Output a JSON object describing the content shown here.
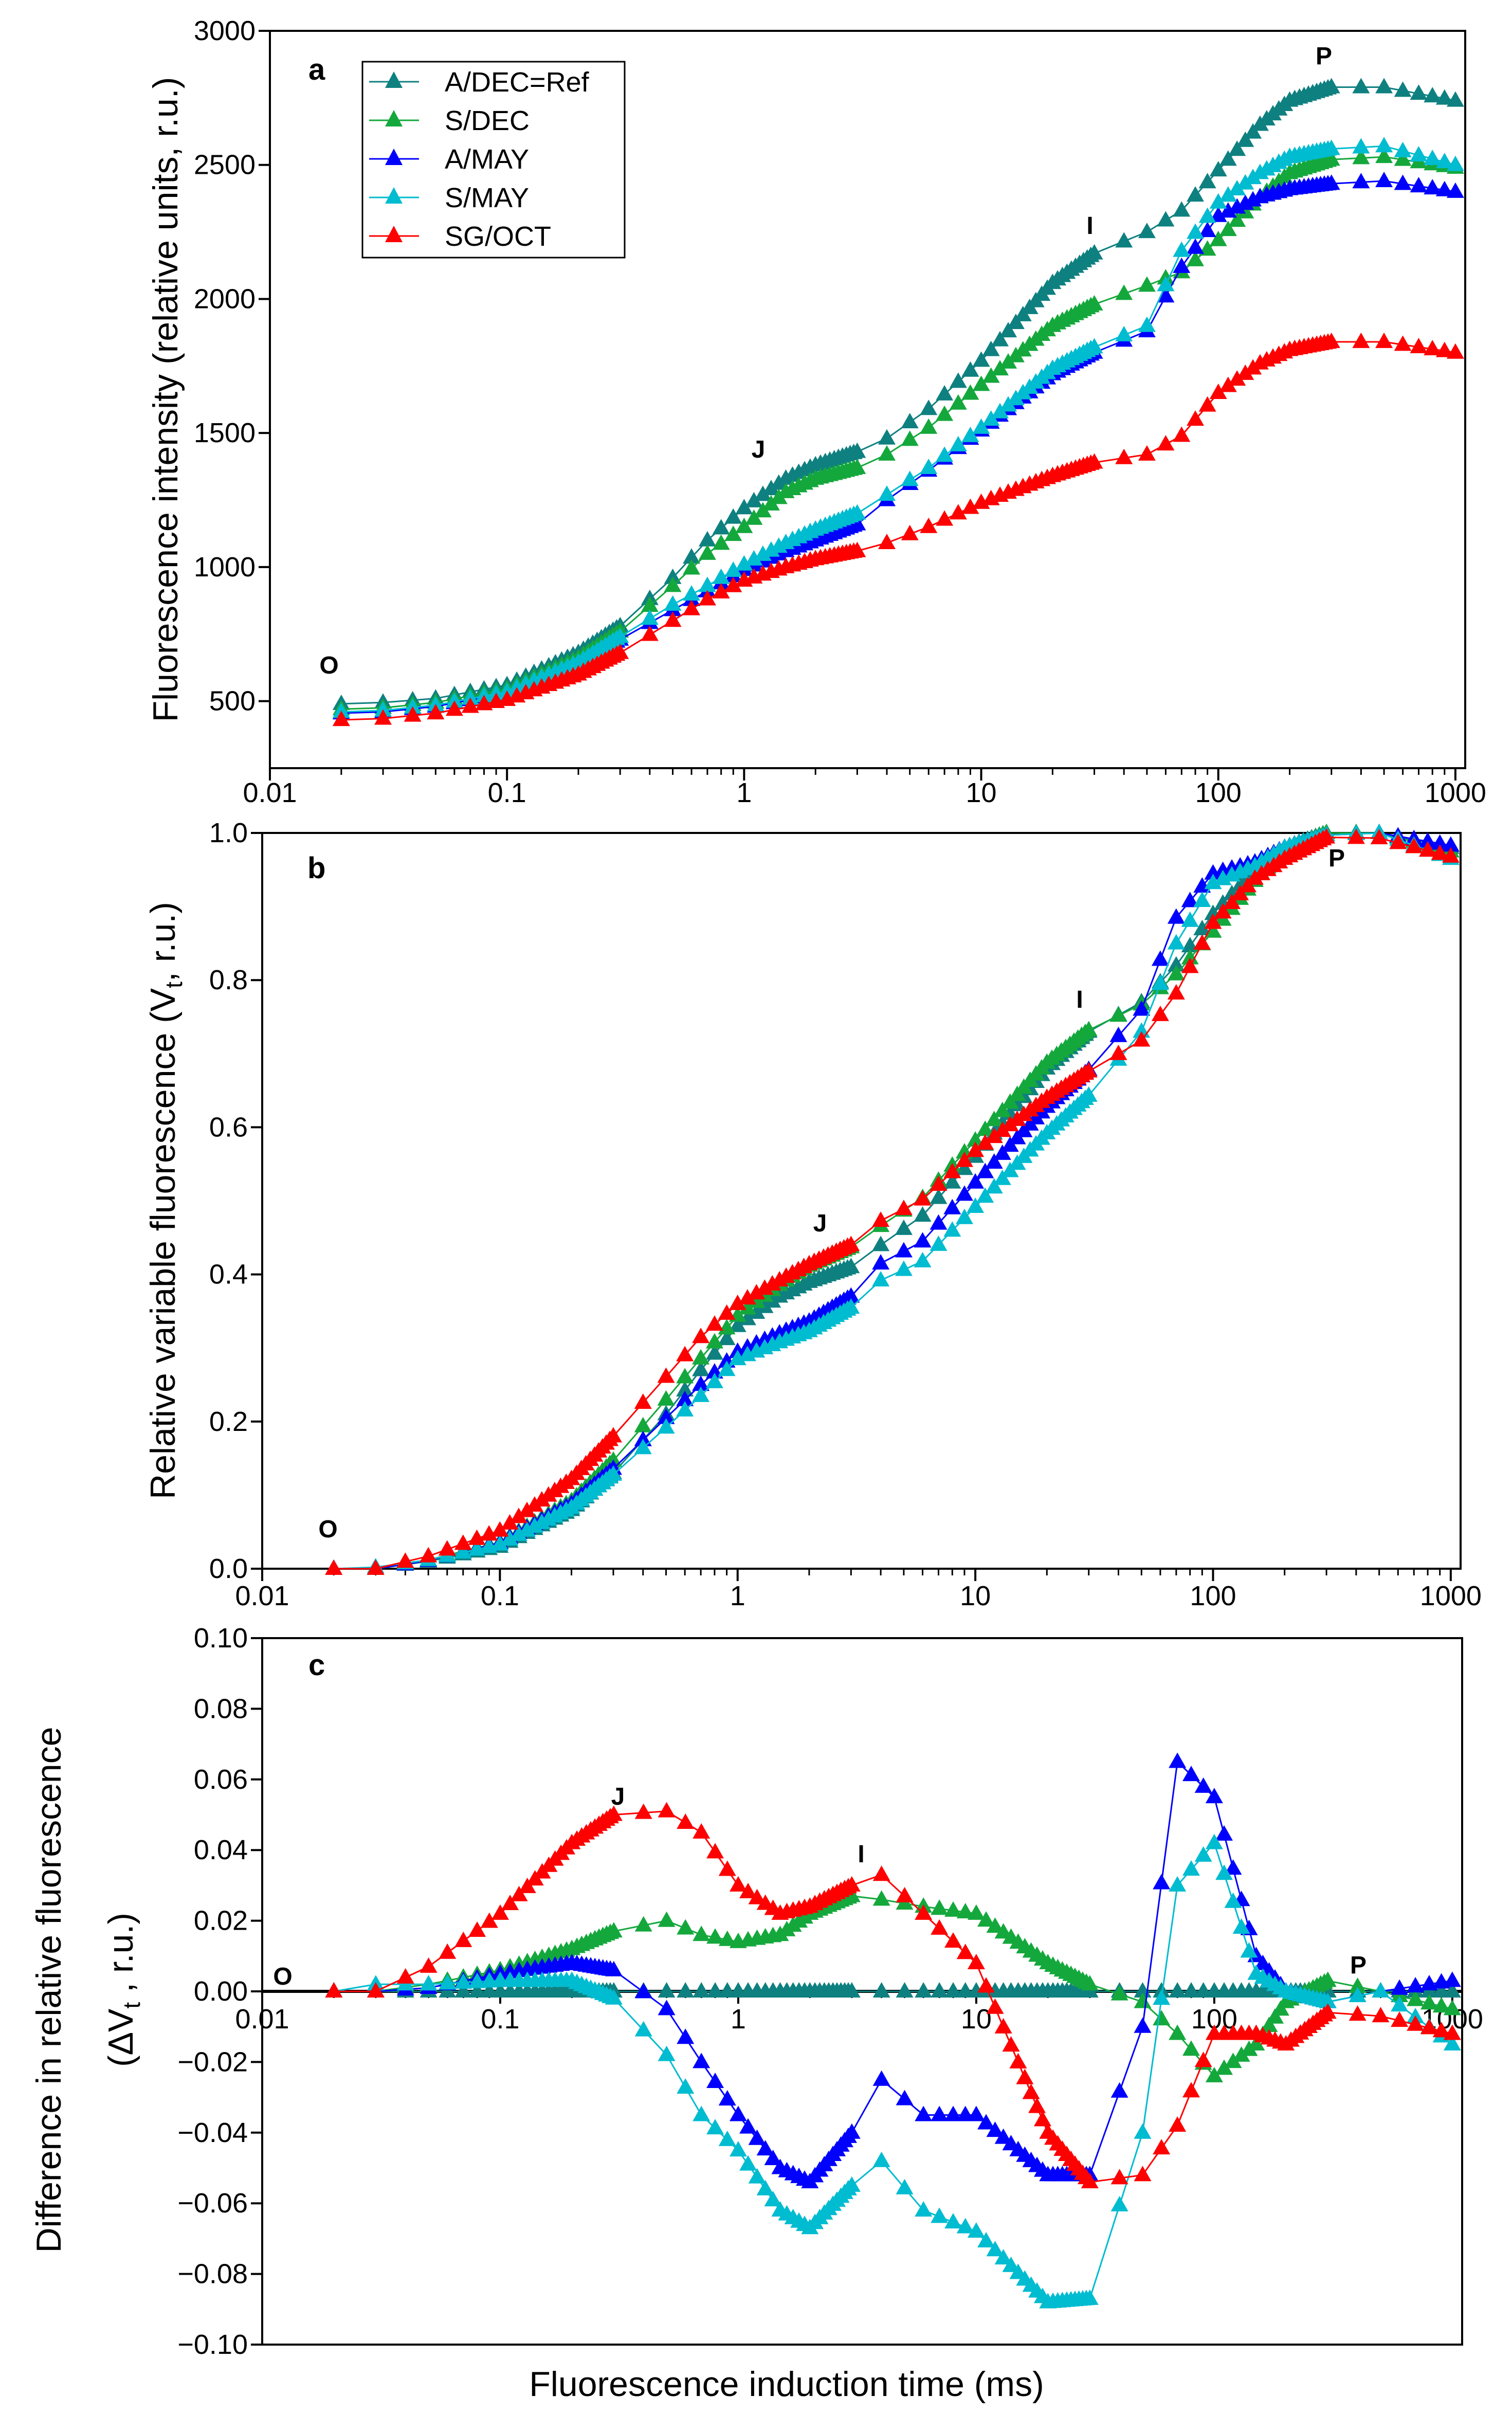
{
  "chart_data": [
    {
      "type": "line",
      "panel": "a",
      "ylabel": "Fluorescence intensity (relative units, r.u.)",
      "xscale": "log",
      "xlim": [
        0.01,
        1100
      ],
      "ylim": [
        250,
        3000
      ],
      "xticks": [
        "0.01",
        "0.1",
        "1",
        "10",
        "100",
        "1000"
      ],
      "yticks": [
        "500",
        "1000",
        "1500",
        "2000",
        "2500",
        "3000"
      ],
      "annotations": [
        "O",
        "J",
        "I",
        "P"
      ],
      "legend_position": "top-left",
      "x": [
        0.02,
        0.03,
        0.05,
        0.1,
        0.2,
        0.3,
        0.5,
        0.7,
        1,
        1.5,
        2,
        3,
        4,
        6,
        10,
        20,
        30,
        50,
        70,
        100,
        150,
        200,
        300,
        500,
        1000
      ],
      "series": [
        {
          "name": "A/DEC=Ref",
          "color": "#0f8080",
          "values": [
            490,
            495,
            510,
            560,
            680,
            780,
            960,
            1100,
            1220,
            1330,
            1380,
            1430,
            1480,
            1590,
            1770,
            2060,
            2170,
            2250,
            2330,
            2480,
            2650,
            2740,
            2790,
            2790,
            2740
          ]
        },
        {
          "name": "S/DEC",
          "color": "#14a83c",
          "values": [
            470,
            475,
            495,
            545,
            660,
            760,
            930,
            1050,
            1150,
            1280,
            1330,
            1370,
            1420,
            1520,
            1680,
            1900,
            1980,
            2050,
            2100,
            2220,
            2380,
            2470,
            2520,
            2530,
            2490
          ]
        },
        {
          "name": "A/MAY",
          "color": "#0000ff",
          "values": [
            455,
            460,
            480,
            530,
            640,
            730,
            840,
            910,
            990,
            1060,
            1100,
            1160,
            1250,
            1360,
            1510,
            1720,
            1800,
            1880,
            2120,
            2310,
            2380,
            2410,
            2430,
            2440,
            2400
          ]
        },
        {
          "name": "S/MAY",
          "color": "#00bcd0",
          "values": [
            460,
            465,
            485,
            535,
            645,
            740,
            860,
            930,
            1010,
            1090,
            1140,
            1200,
            1270,
            1370,
            1520,
            1740,
            1820,
            1900,
            2180,
            2360,
            2470,
            2530,
            2560,
            2570,
            2500
          ]
        },
        {
          "name": "SG/OCT",
          "color": "#ff0000",
          "values": [
            430,
            435,
            455,
            505,
            600,
            680,
            800,
            880,
            950,
            1000,
            1030,
            1060,
            1090,
            1150,
            1240,
            1340,
            1390,
            1420,
            1490,
            1650,
            1760,
            1810,
            1840,
            1840,
            1800
          ]
        }
      ]
    },
    {
      "type": "line",
      "panel": "b",
      "ylabel": [
        "Relative variable fluorescence (V",
        "t",
        ", r.u.)"
      ],
      "xscale": "log",
      "xlim": [
        0.01,
        1100
      ],
      "ylim": [
        0,
        1
      ],
      "xticks": [
        "0.01",
        "0.1",
        "1",
        "10",
        "100",
        "1000"
      ],
      "yticks": [
        "0.0",
        "0.2",
        "0.4",
        "0.6",
        "0.8",
        "1.0"
      ],
      "annotations": [
        "O",
        "J",
        "I",
        "P"
      ],
      "x": [
        0.02,
        0.03,
        0.05,
        0.1,
        0.2,
        0.3,
        0.5,
        0.7,
        1,
        1.5,
        2,
        3,
        4,
        6,
        10,
        20,
        30,
        50,
        70,
        100,
        150,
        200,
        300,
        500,
        1000
      ],
      "series": [
        {
          "name": "A/DEC=Ref",
          "color": "#0f8080",
          "values": [
            0,
            0,
            0.01,
            0.03,
            0.08,
            0.13,
            0.21,
            0.27,
            0.33,
            0.37,
            0.39,
            0.41,
            0.44,
            0.48,
            0.56,
            0.68,
            0.73,
            0.77,
            0.82,
            0.89,
            0.95,
            0.98,
            1.0,
            1.0,
            0.98
          ]
        },
        {
          "name": "S/DEC",
          "color": "#14a83c",
          "values": [
            0,
            0,
            0.012,
            0.036,
            0.092,
            0.147,
            0.23,
            0.286,
            0.344,
            0.386,
            0.412,
            0.437,
            0.466,
            0.504,
            0.582,
            0.688,
            0.732,
            0.767,
            0.808,
            0.866,
            0.935,
            0.977,
            1.0,
            1.0,
            0.975
          ]
        },
        {
          "name": "A/MAY",
          "color": "#0000ff",
          "values": [
            0,
            0,
            0.011,
            0.035,
            0.088,
            0.136,
            0.205,
            0.25,
            0.295,
            0.32,
            0.336,
            0.37,
            0.415,
            0.445,
            0.525,
            0.628,
            0.678,
            0.76,
            0.885,
            0.945,
            0.96,
            0.98,
            0.997,
            1.0,
            0.983
          ]
        },
        {
          "name": "S/MAY",
          "color": "#00bcd0",
          "values": [
            0,
            0.002,
            0.012,
            0.033,
            0.083,
            0.128,
            0.192,
            0.235,
            0.285,
            0.308,
            0.323,
            0.355,
            0.392,
            0.418,
            0.492,
            0.592,
            0.643,
            0.73,
            0.85,
            0.932,
            0.955,
            0.98,
            0.997,
            1.0,
            0.965
          ]
        },
        {
          "name": "SG/OCT",
          "color": "#ff0000",
          "values": [
            0,
            0,
            0.017,
            0.052,
            0.122,
            0.18,
            0.261,
            0.315,
            0.36,
            0.392,
            0.414,
            0.44,
            0.473,
            0.502,
            0.568,
            0.64,
            0.676,
            0.718,
            0.782,
            0.878,
            0.938,
            0.965,
            0.994,
            0.993,
            0.968
          ]
        }
      ]
    },
    {
      "type": "line",
      "panel": "c",
      "ylabel": [
        "Difference in relative fluorescence",
        "(ΔV",
        "t",
        " , r.u.)"
      ],
      "xlabel": "Fluorescence induction time (ms)",
      "xscale": "log",
      "xlim": [
        0.01,
        1100
      ],
      "ylim": [
        -0.1,
        0.1
      ],
      "xticks": [
        "0.01",
        "0.1",
        "1",
        "10",
        "100",
        "1000"
      ],
      "yticks": [
        "−0.10",
        "−0.08",
        "−0.06",
        "−0.04",
        "−0.02",
        "0.00",
        "0.02",
        "0.04",
        "0.06",
        "0.08",
        "0.10"
      ],
      "annotations": [
        "O",
        "J",
        "I",
        "P"
      ],
      "x": [
        0.02,
        0.03,
        0.05,
        0.1,
        0.2,
        0.3,
        0.5,
        0.7,
        1,
        1.5,
        2,
        3,
        4,
        6,
        10,
        20,
        30,
        50,
        70,
        100,
        150,
        200,
        300,
        500,
        1000
      ],
      "series": [
        {
          "name": "A/DEC=Ref",
          "color": "#0f8080",
          "values": [
            0,
            0,
            0,
            0,
            0,
            0,
            0,
            0,
            0,
            0,
            0,
            0,
            0,
            0,
            0,
            0,
            0,
            0,
            0,
            0,
            0,
            0,
            0,
            0,
            0
          ]
        },
        {
          "name": "S/DEC",
          "color": "#14a83c",
          "values": [
            0,
            0,
            0.002,
            0.006,
            0.012,
            0.017,
            0.02,
            0.016,
            0.014,
            0.016,
            0.022,
            0.027,
            0.026,
            0.024,
            0.022,
            0.008,
            0.002,
            -0.003,
            -0.012,
            -0.024,
            -0.015,
            -0.003,
            0.003,
            0,
            -0.005
          ]
        },
        {
          "name": "A/MAY",
          "color": "#0000ff",
          "values": [
            0,
            0,
            0.001,
            0.005,
            0.008,
            0.006,
            -0.005,
            -0.02,
            -0.035,
            -0.05,
            -0.054,
            -0.04,
            -0.025,
            -0.035,
            -0.035,
            -0.052,
            -0.052,
            -0.01,
            0.065,
            0.055,
            0.01,
            0,
            -0.003,
            0,
            0.003
          ]
        },
        {
          "name": "S/MAY",
          "color": "#00bcd0",
          "values": [
            0,
            0.002,
            0.002,
            0.003,
            0.003,
            -0.002,
            -0.018,
            -0.035,
            -0.045,
            -0.062,
            -0.067,
            -0.055,
            -0.048,
            -0.062,
            -0.068,
            -0.088,
            -0.087,
            -0.04,
            0.03,
            0.042,
            0.005,
            0,
            -0.003,
            0,
            -0.015
          ]
        },
        {
          "name": "SG/OCT",
          "color": "#ff0000",
          "values": [
            0,
            0,
            0.007,
            0.022,
            0.042,
            0.05,
            0.051,
            0.045,
            0.03,
            0.022,
            0.024,
            0.03,
            0.033,
            0.022,
            0.008,
            -0.04,
            -0.054,
            -0.052,
            -0.038,
            -0.012,
            -0.012,
            -0.015,
            -0.006,
            -0.007,
            -0.012
          ]
        }
      ]
    }
  ]
}
